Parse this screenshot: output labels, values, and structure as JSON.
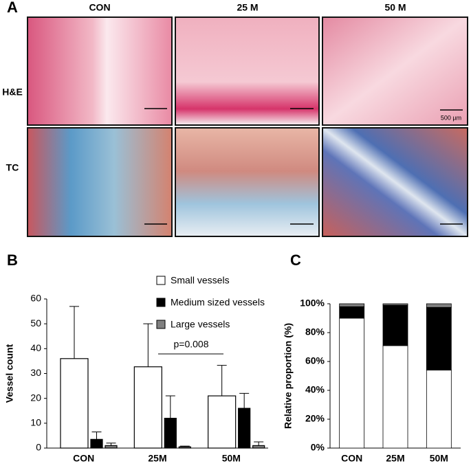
{
  "panel_a": {
    "label": "A",
    "columns": [
      "CON",
      "25 M",
      "50 M"
    ],
    "rows": [
      "H&E",
      "TC"
    ],
    "scale_bar": "500 µm"
  },
  "chart_data": [
    {
      "type": "bar",
      "panel": "B",
      "y_label": "Vessel count",
      "categories": [
        "CON",
        "25M",
        "50M"
      ],
      "series": [
        {
          "name": "Small vessels",
          "color": "#ffffff",
          "values": [
            36,
            32.7,
            21
          ],
          "errors": [
            21,
            17.3,
            12.3
          ]
        },
        {
          "name": "Medium sized vessels",
          "color": "#000000",
          "values": [
            3.5,
            12,
            16
          ],
          "errors": [
            3,
            9,
            6
          ]
        },
        {
          "name": "Large vessels",
          "color": "#808080",
          "values": [
            1,
            0.5,
            1
          ],
          "errors": [
            1,
            0.3,
            1.5
          ]
        }
      ],
      "annotation": "p=0.008",
      "ylim": [
        0,
        60
      ],
      "yticks": [
        0,
        10,
        20,
        30,
        40,
        50,
        60
      ]
    },
    {
      "type": "stacked_bar",
      "panel": "C",
      "y_label": "Relative proportion (%)",
      "categories": [
        "CON",
        "25M",
        "50M"
      ],
      "series": [
        {
          "color": "#ffffff",
          "values": [
            90,
            71,
            54
          ]
        },
        {
          "color": "#000000",
          "values": [
            8,
            28,
            43.5
          ]
        },
        {
          "color": "#808080",
          "values": [
            2,
            1,
            2.5
          ]
        }
      ],
      "ylim": [
        0,
        100
      ],
      "yticks": [
        {
          "value": 0,
          "label": "0%"
        },
        {
          "value": 20,
          "label": "20%"
        },
        {
          "value": 40,
          "label": "40%"
        },
        {
          "value": 60,
          "label": "60%"
        },
        {
          "value": 80,
          "label": "80%"
        },
        {
          "value": 100,
          "label": "100%"
        }
      ]
    }
  ]
}
